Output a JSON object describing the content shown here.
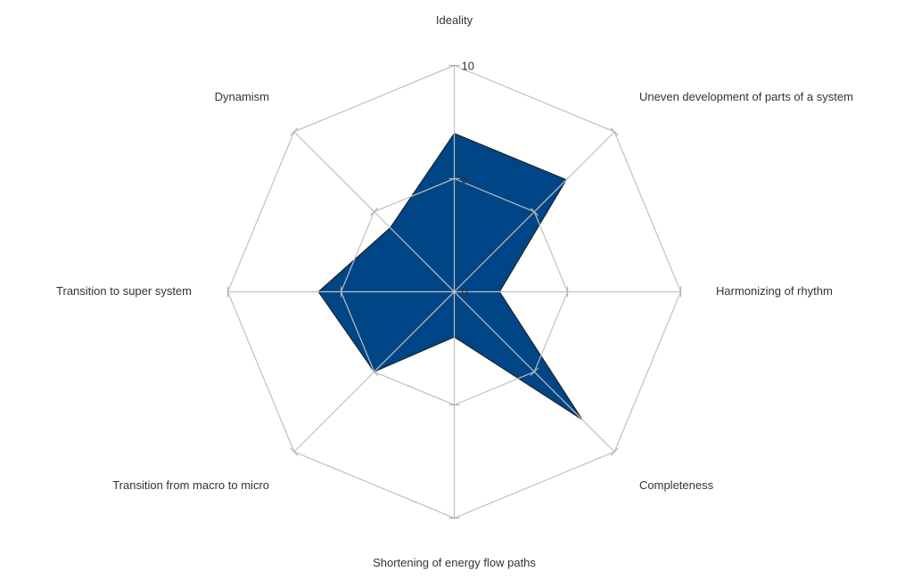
{
  "chart_data": {
    "type": "radar",
    "categories": [
      "Ideality",
      "Uneven development of parts of a system",
      "Harmonizing of rhythm",
      "Completeness",
      "Shortening of energy flow paths",
      "Transition from macro to micro",
      "Transition to super system",
      "Dynamism"
    ],
    "series": [
      {
        "values": [
          7,
          7,
          2,
          8,
          2,
          5,
          6,
          4
        ],
        "color": "#004586"
      }
    ],
    "rlim": [
      0,
      10
    ],
    "ticks": [
      "0",
      "5",
      "10"
    ],
    "tick_values": [
      0,
      5,
      10
    ],
    "grid": true,
    "legend": "none"
  }
}
